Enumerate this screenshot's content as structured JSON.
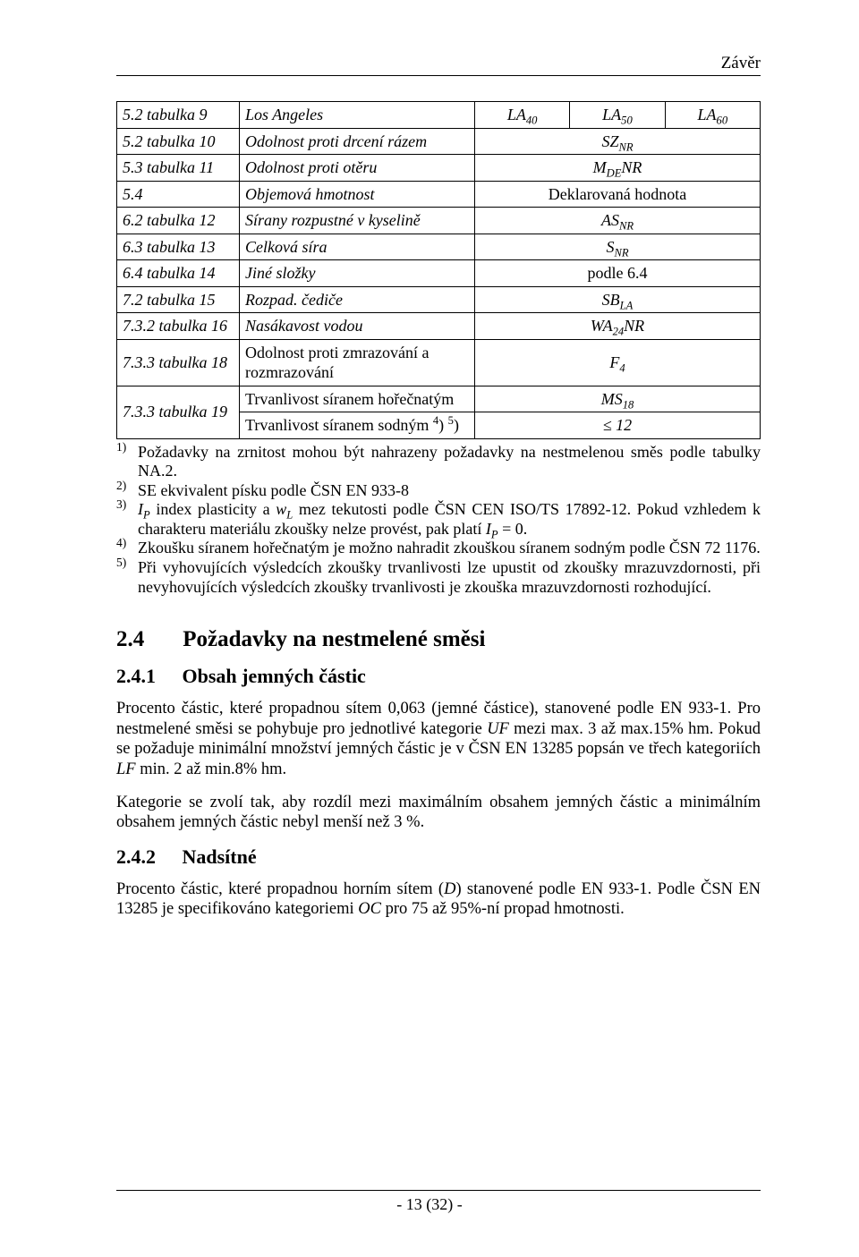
{
  "header": {
    "label": "Závěr"
  },
  "table": {
    "rows": [
      {
        "c0": "5.2 tabulka 9",
        "c1": "Los Angeles",
        "vals": [
          "LA<sub>40</sub>",
          "LA<sub>50</sub>",
          "LA<sub>60</sub>"
        ],
        "multi": true
      },
      {
        "c0": "5.2 tabulka 10",
        "c1": "Odolnost proti drcení rázem",
        "val": "SZ<sub>NR</sub>"
      },
      {
        "c0": "5.3 tabulka 11",
        "c1": "Odolnost proti otěru",
        "val": "M<sub>DE</sub>NR"
      },
      {
        "c0": "5.4",
        "c1": "Objemová hmotnost",
        "val": "Deklarovaná hodnota",
        "plain": true
      },
      {
        "c0": "6.2 tabulka 12",
        "c1": "Sírany rozpustné v kyselině",
        "val": "AS<sub>NR</sub>"
      },
      {
        "c0": "6.3 tabulka 13",
        "c1": "Celková síra",
        "val": "S<sub>NR</sub>"
      },
      {
        "c0": "6.4 tabulka 14",
        "c1": "Jiné složky",
        "val": "podle 6.4",
        "plain": true
      },
      {
        "c0": "7.2 tabulka 15",
        "c1": "Rozpad. čediče",
        "val": "SB<sub>LA</sub>"
      },
      {
        "c0": "7.3.2 tabulka 16",
        "c1": "Nasákavost vodou",
        "val": "WA<sub>24</sub>NR"
      },
      {
        "c0": "7.3.3 tabulka 18",
        "c1": "Odolnost proti zmrazování a rozmrazování",
        "c1plain": true,
        "val": "F<sub>4</sub>"
      },
      {
        "c0": "7.3.3 tabulka 19",
        "rowspan": 2,
        "c1": "Trvanlivost síranem hořečnatým",
        "c1plain": true,
        "val": "MS<sub>18</sub>"
      },
      {
        "c1": "Trvanlivost síranem sodným <sup>4</sup>) <sup>5</sup>)",
        "c1plain": true,
        "val": "≤ 12",
        "plainItalic": true
      }
    ]
  },
  "notes": [
    {
      "n": "1)",
      "text": "Požadavky na zrnitost mohou být nahrazeny požadavky na nestmelenou směs podle tabulky NA.2."
    },
    {
      "n": "2)",
      "text": "SE ekvivalent písku podle ČSN EN 933-8"
    },
    {
      "n": "3)",
      "text": "<i>I<sub>P</sub></i> index plasticity a <i>w<sub>L</sub></i> mez tekutosti podle ČSN CEN ISO/TS 17892-12. Pokud vzhledem k charakteru materiálu zkoušky nelze provést, pak platí <i>I<sub>P</sub></i> = 0."
    },
    {
      "n": "4)",
      "text": "Zkoušku síranem hořečnatým je možno nahradit zkouškou síranem sodným podle ČSN 72 1176."
    },
    {
      "n": "5)",
      "text": "Při vyhovujících výsledcích zkoušky trvanlivosti lze upustit od zkoušky mrazuvzdornosti, při nevyhovujících výsledcích zkoušky trvanlivosti je zkouška mrazuvzdornosti rozhodující.",
      "last": true
    }
  ],
  "sections": {
    "s24": {
      "num": "2.4",
      "title": "Požadavky na nestmelené směsi"
    },
    "s241": {
      "num": "2.4.1",
      "title": "Obsah jemných částic",
      "p1": "Procento částic, které propadnou sítem 0,063 (jemné částice), stanovené podle EN 933-1. Pro nestmelené směsi se pohybuje pro jednotlivé kategorie <i>UF</i> mezi max. 3 až max.15% hm. Pokud se požaduje minimální množství jemných částic je v ČSN EN 13285 popsán ve třech kategoriích <i>LF</i> min. 2 až min.8% hm.",
      "p2": "Kategorie se zvolí tak, aby rozdíl mezi maximálním obsahem jemných částic a minimálním obsahem jemných částic nebyl menší než 3 %."
    },
    "s242": {
      "num": "2.4.2",
      "title": "Nadsítné",
      "p1": "Procento částic, které propadnou horním sítem (<i>D</i>) stanovené podle EN 933-1. Podle ČSN EN 13285 je specifikováno kategoriemi <i>OC</i> pro 75 až 95%-ní propad hmotnosti."
    }
  },
  "footer": {
    "text": "- 13 (32) -"
  }
}
